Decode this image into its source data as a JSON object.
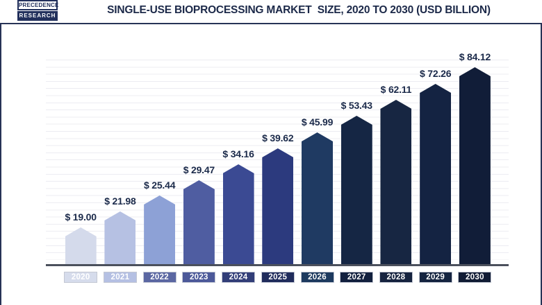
{
  "logo": {
    "line1": "PRECEDENCE",
    "line2": "RESEARCH"
  },
  "title": "SINGLE-USE BIOPROCESSING MARKET  SIZE, 2020 TO 2030 (USD BILLION)",
  "chart_data": {
    "type": "bar",
    "title": "Single-Use Bioprocessing Market Size, 2020 to 2030 (USD Billion)",
    "categories": [
      "2020",
      "2021",
      "2022",
      "2023",
      "2024",
      "2025",
      "2026",
      "2027",
      "2028",
      "2029",
      "2030"
    ],
    "values": [
      19.0,
      21.98,
      25.44,
      29.47,
      34.16,
      39.62,
      45.99,
      53.43,
      62.11,
      72.26,
      84.12
    ],
    "value_labels": [
      "$ 19.00",
      "$ 21.98",
      "$ 25.44",
      "$ 29.47",
      "$ 34.16",
      "$ 39.62",
      "$ 45.99",
      "$ 53.43",
      "$ 62.11",
      "$ 72.26",
      "$ 84.12"
    ],
    "xlabel": "",
    "ylabel": "",
    "unit": "USD Billion",
    "grid": true,
    "legend": false,
    "bar_shape": "pentagon-top",
    "bar_colors": [
      "#d4daeb",
      "#b6c1e3",
      "#8da1d6",
      "#4f5da1",
      "#3b4a93",
      "#2c3a7e",
      "#1f3a62",
      "#152644",
      "#172642",
      "#142342",
      "#111d38"
    ],
    "year_box_colors": [
      "#d6dcec",
      "#b5c0e3",
      "#5b67a2",
      "#4c5999",
      "#323e78",
      "#202c5c",
      "#1d3a5f",
      "#12203e",
      "#16233f",
      "#152440",
      "#111c35"
    ],
    "value_label_color": "#1b2a4a",
    "axis_color": "#4b505c",
    "frame_color": "#273356",
    "gridline_color": "#ececf2"
  }
}
